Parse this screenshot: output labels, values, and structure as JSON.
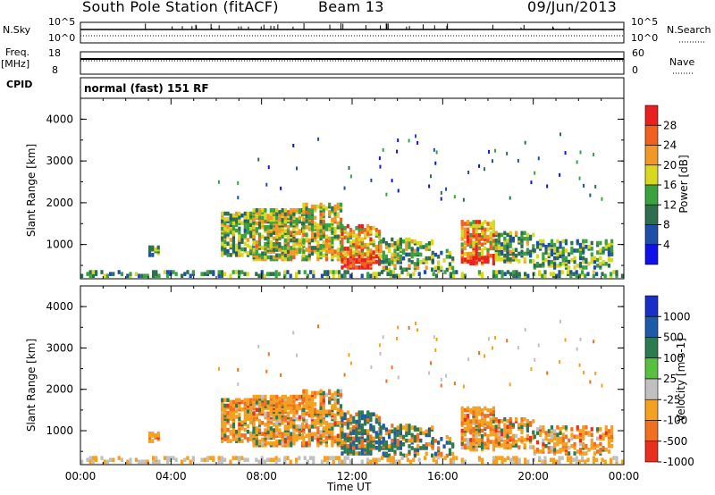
{
  "header": {
    "station": "South Pole Station (fitACF)",
    "beam": "Beam 13",
    "date": "09/Jun/2013"
  },
  "top_panels": {
    "nsky_label": "N.Sky",
    "nsky_ticks": [
      "10^5",
      "10^0"
    ],
    "nsearch_label": "N.Search",
    "nsearch_ticks": [
      "10^5",
      "10^0"
    ],
    "freq_label": "Freq.",
    "freq_unit": "[MHz]",
    "freq_ticks": [
      "18",
      "8"
    ],
    "nave_label": "Nave",
    "nave_ticks": [
      "60",
      "0"
    ],
    "cpid_label": "CPID",
    "cpid_text": "normal (fast) 151 RF"
  },
  "colors": {
    "power": [
      "#1010e8",
      "#1e4ea8",
      "#2e6e4e",
      "#3aa040",
      "#d8d820",
      "#f09828",
      "#f06020",
      "#e82020"
    ],
    "velocity": [
      "#1a2ec8",
      "#1e5aa8",
      "#2e7a50",
      "#58c040",
      "#c0c0c0",
      "#f4a020",
      "#f07020",
      "#e83020"
    ]
  },
  "chart_data": [
    {
      "type": "heatmap",
      "panel": "power",
      "ylabel": "Slant Range [km]",
      "xlabel": "",
      "x_ticks": [
        "00:00",
        "04:00",
        "08:00",
        "12:00",
        "16:00",
        "20:00",
        "00:00"
      ],
      "y_ticks": [
        "1000",
        "2000",
        "3000",
        "4000"
      ],
      "ylim": [
        180,
        4500
      ],
      "xlim_hours": [
        0,
        24
      ],
      "colorbar_label": "Power [dB]",
      "colorbar_ticks": [
        "4",
        "8",
        "12",
        "16",
        "20",
        "24",
        "28"
      ],
      "clim": [
        0,
        30
      ]
    },
    {
      "type": "heatmap",
      "panel": "velocity",
      "ylabel": "Slant Range [km]",
      "xlabel": "Time UT",
      "x_ticks": [
        "00:00",
        "04:00",
        "08:00",
        "12:00",
        "16:00",
        "20:00",
        "00:00"
      ],
      "y_ticks": [
        "1000",
        "2000",
        "3000",
        "4000"
      ],
      "ylim": [
        180,
        4500
      ],
      "xlim_hours": [
        0,
        24
      ],
      "colorbar_label": "Velocity [m s-1]",
      "colorbar_ticks": [
        "1000",
        "500",
        "100",
        "25",
        "-25",
        "-100",
        "-500",
        "-1000"
      ],
      "clim": [
        -1250,
        1250
      ]
    }
  ]
}
